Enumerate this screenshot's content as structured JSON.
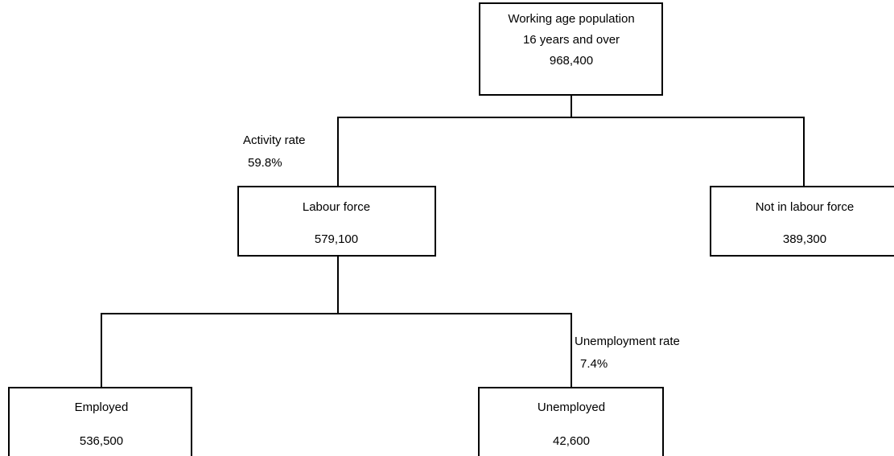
{
  "nodes": [
    {
      "lines": [
        "Working age population",
        "16 years and over",
        "968,400"
      ]
    },
    {
      "lines": [
        "Labour force",
        "579,100"
      ]
    },
    {
      "lines": [
        "Not in labour force",
        "389,300"
      ]
    },
    {
      "lines": [
        "Employed",
        "536,500"
      ]
    },
    {
      "lines": [
        "Unemployed",
        "42,600"
      ]
    }
  ],
  "rates": [
    {
      "label": "Activity rate",
      "value": "59.8%"
    },
    {
      "label": "Unemployment rate",
      "value": "7.4%"
    }
  ]
}
